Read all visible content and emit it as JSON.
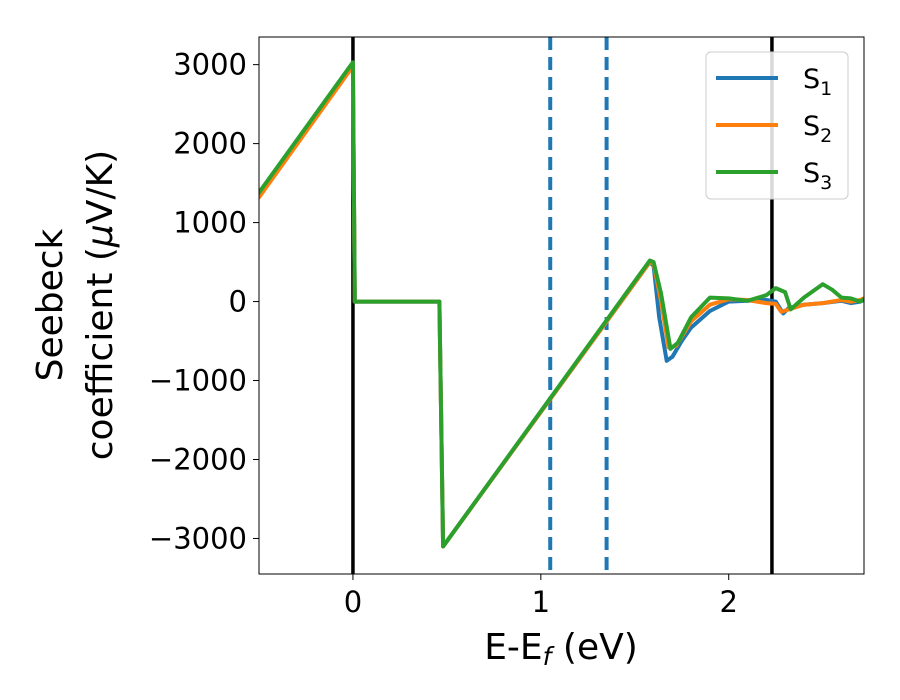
{
  "chart_data": {
    "type": "line",
    "xlabel": "E-E",
    "xlabel_sub": "f",
    "xlabel_unit": " (eV)",
    "ylabel_line1": "Seebeck",
    "ylabel_line2_text": "coefficient  (",
    "ylabel_mu": "μ",
    "ylabel_unit_tail": "V/K)",
    "xlim": [
      -0.5,
      2.72
    ],
    "ylim": [
      -3450,
      3350
    ],
    "x_ticks": [
      0,
      1,
      2
    ],
    "x_tick_labels": [
      "0",
      "1",
      "2"
    ],
    "y_ticks": [
      -3000,
      -2000,
      -1000,
      0,
      1000,
      2000,
      3000
    ],
    "y_tick_labels": [
      "−3000",
      "−2000",
      "−1000",
      "0",
      "1000",
      "2000",
      "3000"
    ],
    "grid": false,
    "legend_position": "top-right",
    "series": [
      {
        "name": "S",
        "sub": "1",
        "color": "#1f77b4",
        "x": [
          -0.5,
          0.0,
          0.01,
          0.46,
          0.48,
          1.58,
          1.6,
          1.63,
          1.67,
          1.7,
          1.75,
          1.8,
          1.9,
          2.0,
          2.1,
          2.2,
          2.25,
          2.29,
          2.32,
          2.4,
          2.5,
          2.6,
          2.65,
          2.7,
          2.72
        ],
        "y": [
          1350,
          3000,
          0,
          0,
          -3100,
          500,
          450,
          -200,
          -750,
          -700,
          -500,
          -330,
          -120,
          0,
          10,
          20,
          0,
          -150,
          -80,
          -40,
          -20,
          10,
          -20,
          0,
          20
        ]
      },
      {
        "name": "S",
        "sub": "2",
        "color": "#ff7f0e",
        "x": [
          -0.5,
          0.0,
          0.01,
          0.46,
          0.48,
          1.58,
          1.6,
          1.64,
          1.68,
          1.72,
          1.8,
          1.9,
          2.0,
          2.1,
          2.15,
          2.2,
          2.25,
          2.28,
          2.32,
          2.4,
          2.5,
          2.6,
          2.65,
          2.7,
          2.72
        ],
        "y": [
          1320,
          2980,
          0,
          0,
          -3100,
          500,
          480,
          0,
          -580,
          -560,
          -250,
          -40,
          30,
          20,
          0,
          -20,
          -30,
          -130,
          -100,
          -40,
          -20,
          20,
          0,
          20,
          40
        ]
      },
      {
        "name": "S",
        "sub": "3",
        "color": "#2ca02c",
        "x": [
          -0.5,
          0.0,
          0.01,
          0.46,
          0.48,
          1.58,
          1.6,
          1.64,
          1.69,
          1.73,
          1.8,
          1.9,
          2.0,
          2.1,
          2.2,
          2.25,
          2.3,
          2.33,
          2.4,
          2.5,
          2.55,
          2.6,
          2.65,
          2.7,
          2.72
        ],
        "y": [
          1380,
          3030,
          0,
          0,
          -3100,
          520,
          500,
          100,
          -600,
          -520,
          -200,
          50,
          40,
          10,
          80,
          170,
          120,
          -100,
          50,
          220,
          150,
          50,
          40,
          0,
          30
        ]
      }
    ],
    "vertical_lines": [
      {
        "x": 0.0,
        "color": "#000000",
        "dash": false
      },
      {
        "x": 2.23,
        "color": "#000000",
        "dash": false
      },
      {
        "x": 1.05,
        "color": "#1f77b4",
        "dash": true
      },
      {
        "x": 1.35,
        "color": "#1f77b4",
        "dash": true
      }
    ]
  }
}
